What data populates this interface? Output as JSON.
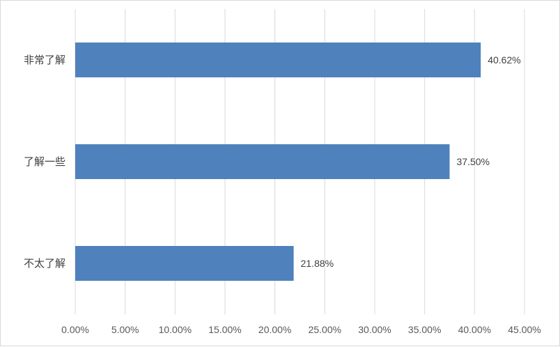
{
  "chart_data": {
    "type": "bar",
    "orientation": "horizontal",
    "categories": [
      "非常了解",
      "了解一些",
      "不太了解"
    ],
    "values": [
      40.62,
      37.5,
      21.88
    ],
    "data_labels": [
      "40.62%",
      "37.50%",
      "21.88%"
    ],
    "x_ticks": [
      "0.00%",
      "5.00%",
      "10.00%",
      "15.00%",
      "20.00%",
      "25.00%",
      "30.00%",
      "35.00%",
      "40.00%",
      "45.00%"
    ],
    "xlim": [
      0,
      45
    ],
    "grid": true,
    "bar_color": "#4f81bd",
    "grid_color": "#d9d9d9"
  }
}
